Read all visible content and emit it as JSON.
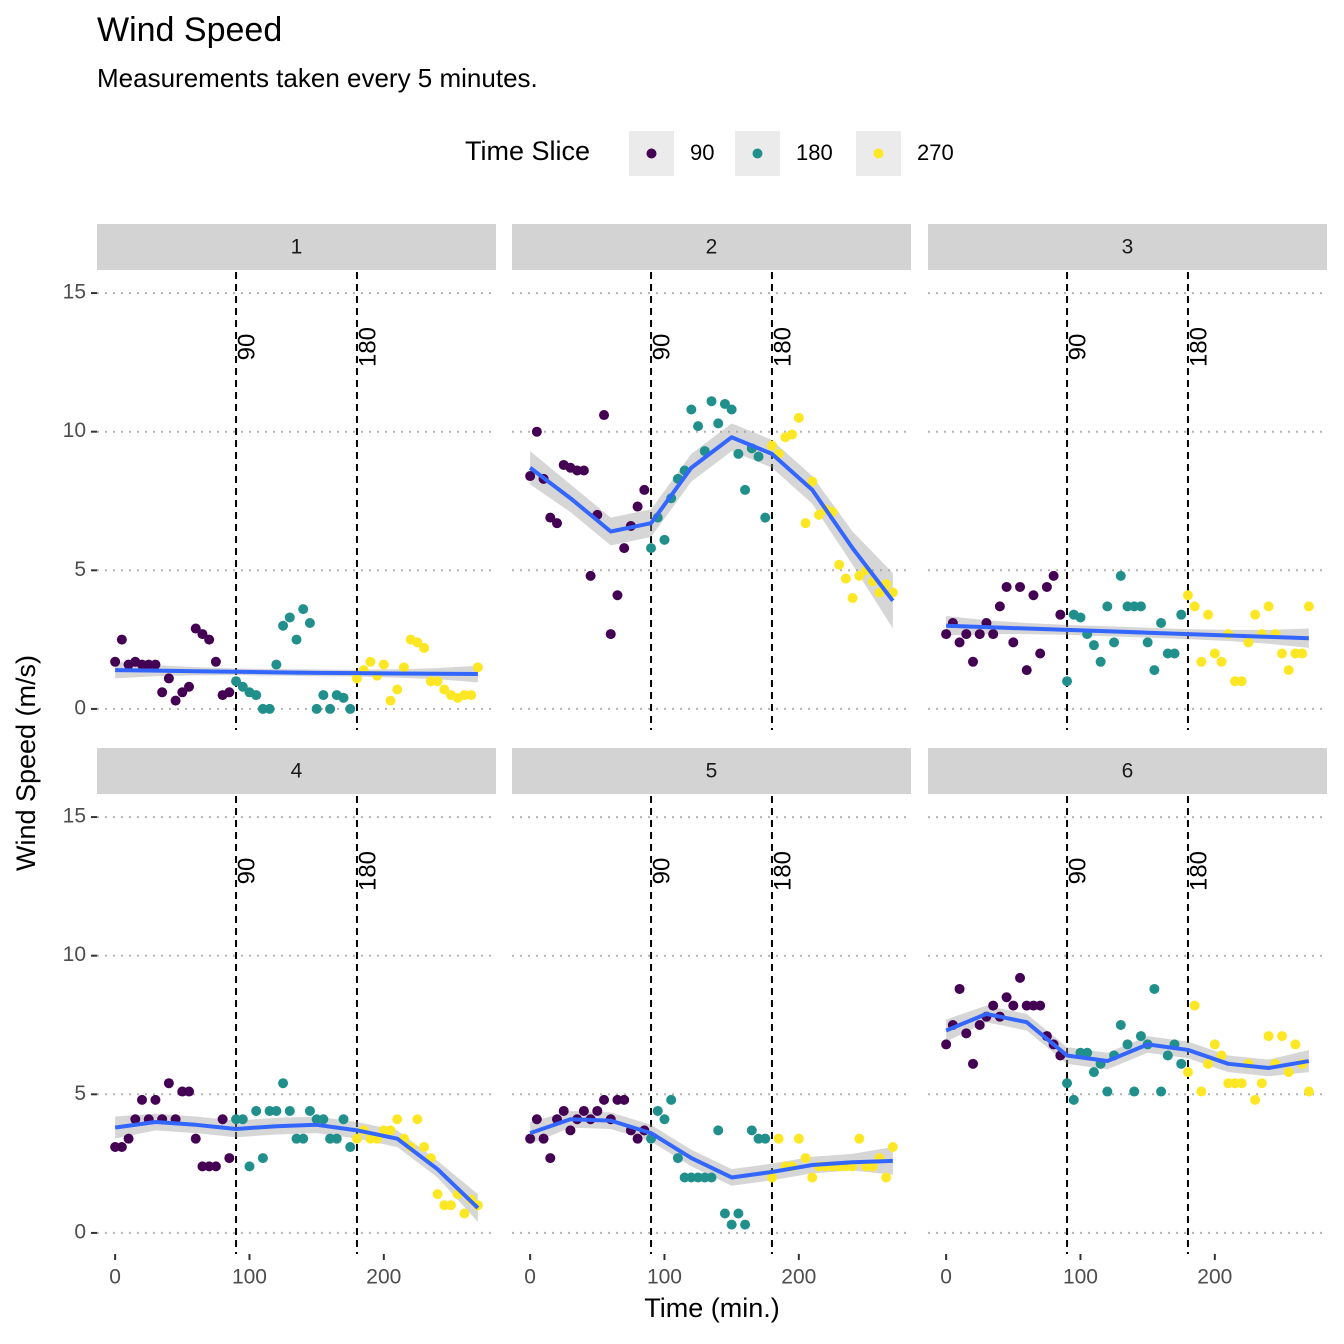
{
  "chart_data": {
    "type": "scatter",
    "title": "Wind Speed",
    "subtitle": "Measurements taken every 5 minutes.",
    "x_label": "Time (min.)",
    "y_label": "Wind Speed (m/s)",
    "legend_title": "Time Slice",
    "xlim": [
      -13.5,
      283.5
    ],
    "ylim": [
      -0.76,
      15.76
    ],
    "xticks": [
      0,
      100,
      200
    ],
    "yticks": [
      0,
      5,
      10,
      15
    ],
    "grid": true,
    "vlines": [
      90,
      180
    ],
    "smooth_color": "#3366FF",
    "groups": [
      {
        "name": "90",
        "color": "#440154",
        "x": [
          0,
          5,
          10,
          15,
          20,
          25,
          30,
          35,
          40,
          45,
          50,
          55,
          60,
          65,
          70,
          75,
          80,
          85
        ]
      },
      {
        "name": "180",
        "color": "#21908C",
        "x": [
          90,
          95,
          100,
          105,
          110,
          115,
          120,
          125,
          130,
          135,
          140,
          145,
          150,
          155,
          160,
          165,
          170,
          175
        ]
      },
      {
        "name": "270",
        "color": "#FDE725",
        "x": [
          180,
          185,
          190,
          195,
          200,
          205,
          210,
          215,
          220,
          225,
          230,
          235,
          240,
          245,
          250,
          255,
          260,
          265,
          270
        ]
      }
    ],
    "smooth_x": [
      0,
      30,
      60,
      90,
      120,
      150,
      180,
      210,
      240,
      270
    ],
    "facets": [
      {
        "label": "1",
        "values": [
          [
            1.7,
            2.5,
            1.6,
            1.7,
            1.6,
            1.6,
            1.6,
            0.6,
            1.1,
            0.3,
            0.6,
            0.8,
            2.9,
            2.7,
            2.5,
            1.7,
            0.5,
            0.6
          ],
          [
            1.0,
            0.8,
            0.6,
            0.5,
            0,
            0,
            1.6,
            3.0,
            3.3,
            2.5,
            3.6,
            3.1,
            0,
            0.5,
            0,
            0.5,
            0.4,
            0
          ],
          [
            1.1,
            1.4,
            1.7,
            1.2,
            1.6,
            0.3,
            0.7,
            1.5,
            2.5,
            2.4,
            2.2,
            1.0,
            1.0,
            0.7,
            0.5,
            0.4,
            0.5,
            0.5,
            1.5
          ]
        ],
        "smooth": {
          "values": [
            1.4,
            1.38,
            1.36,
            1.34,
            1.32,
            1.3,
            1.29,
            1.28,
            1.27,
            1.26
          ],
          "lower": [
            1.1,
            1.18,
            1.21,
            1.22,
            1.2,
            1.18,
            1.17,
            1.13,
            1.07,
            0.96
          ],
          "upper": [
            1.7,
            1.58,
            1.51,
            1.46,
            1.44,
            1.42,
            1.41,
            1.43,
            1.47,
            1.56
          ]
        }
      },
      {
        "label": "2",
        "values": [
          [
            8.4,
            10.0,
            8.3,
            6.9,
            6.7,
            8.8,
            8.7,
            8.6,
            8.6,
            4.8,
            7.0,
            10.6,
            2.7,
            4.1,
            5.8,
            6.6,
            7.3,
            7.9
          ],
          [
            5.8,
            6.9,
            6.1,
            7.6,
            8.3,
            8.6,
            10.8,
            10.2,
            9.3,
            11.1,
            10.3,
            11.0,
            10.8,
            9.2,
            7.9,
            9.4,
            9.1,
            6.9
          ],
          [
            9.5,
            9.2,
            9.8,
            9.9,
            10.5,
            6.7,
            8.2,
            7.0,
            7.2,
            7.1,
            5.2,
            4.7,
            4.0,
            4.8,
            5.0,
            4.6,
            4.2,
            4.5,
            4.2
          ]
        ],
        "smooth": {
          "values": [
            8.7,
            7.6,
            6.4,
            6.7,
            8.7,
            9.8,
            9.2,
            7.9,
            5.8,
            3.9
          ],
          "lower": [
            8.1,
            7.1,
            5.9,
            6.2,
            8.2,
            9.3,
            8.7,
            7.4,
            5.2,
            2.9
          ],
          "upper": [
            9.3,
            8.1,
            6.9,
            7.2,
            9.2,
            10.3,
            9.7,
            8.4,
            6.4,
            4.9
          ]
        }
      },
      {
        "label": "3",
        "values": [
          [
            2.7,
            3.1,
            2.4,
            2.7,
            1.7,
            2.7,
            3.1,
            2.7,
            3.7,
            4.4,
            2.4,
            4.4,
            1.4,
            4.1,
            2.0,
            4.4,
            4.8,
            3.4
          ],
          [
            1.0,
            3.4,
            3.3,
            2.7,
            2.3,
            1.7,
            3.7,
            2.4,
            4.8,
            3.7,
            3.7,
            3.7,
            2.4,
            1.4,
            3.1,
            2.0,
            2.0,
            3.4
          ],
          [
            4.1,
            3.7,
            1.7,
            3.4,
            2.0,
            1.7,
            2.7,
            1.0,
            1.0,
            2.4,
            3.4,
            2.7,
            3.7,
            2.7,
            2.0,
            1.4,
            2.0,
            2.0,
            3.7
          ]
        ],
        "smooth": {
          "values": [
            3.0,
            2.95,
            2.9,
            2.85,
            2.8,
            2.75,
            2.7,
            2.65,
            2.6,
            2.55
          ],
          "lower": [
            2.65,
            2.7,
            2.7,
            2.67,
            2.62,
            2.57,
            2.52,
            2.45,
            2.35,
            2.2
          ],
          "upper": [
            3.35,
            3.2,
            3.1,
            3.03,
            2.98,
            2.93,
            2.88,
            2.85,
            2.85,
            2.9
          ]
        }
      },
      {
        "label": "4",
        "values": [
          [
            3.1,
            3.1,
            3.4,
            4.1,
            4.8,
            4.1,
            4.8,
            4.1,
            5.4,
            4.1,
            5.1,
            5.1,
            3.4,
            2.4,
            2.4,
            2.4,
            4.1,
            2.7
          ],
          [
            4.1,
            4.1,
            2.4,
            4.4,
            2.7,
            4.4,
            4.4,
            5.4,
            4.4,
            3.4,
            3.4,
            4.4,
            4.1,
            4.1,
            3.4,
            3.4,
            4.1,
            3.1
          ],
          [
            3.4,
            3.7,
            3.4,
            3.4,
            3.7,
            3.7,
            4.1,
            3.4,
            3.1,
            4.1,
            3.1,
            2.7,
            1.4,
            1.0,
            1.0,
            1.4,
            0.7,
            1.2,
            1.0
          ]
        ],
        "smooth": {
          "values": [
            3.8,
            4.0,
            3.9,
            3.75,
            3.85,
            3.9,
            3.7,
            3.4,
            2.3,
            0.9
          ],
          "lower": [
            3.4,
            3.7,
            3.6,
            3.45,
            3.55,
            3.6,
            3.4,
            3.1,
            2.0,
            0.4
          ],
          "upper": [
            4.2,
            4.3,
            4.2,
            4.05,
            4.15,
            4.2,
            4.0,
            3.7,
            2.6,
            1.4
          ]
        }
      },
      {
        "label": "5",
        "values": [
          [
            3.4,
            4.1,
            3.4,
            2.7,
            4.1,
            4.4,
            3.7,
            4.1,
            4.4,
            4.1,
            4.4,
            4.8,
            4.1,
            4.8,
            4.8,
            3.7,
            3.4,
            3.7
          ],
          [
            3.4,
            4.4,
            4.1,
            4.8,
            2.7,
            2.0,
            2.0,
            2.0,
            2.0,
            2.0,
            3.7,
            0.7,
            0.3,
            0.7,
            0.3,
            3.7,
            3.4,
            3.4
          ],
          [
            2.0,
            3.4,
            2.4,
            2.4,
            3.4,
            2.7,
            2.0,
            2.4,
            2.4,
            2.4,
            2.4,
            2.4,
            2.4,
            3.4,
            2.4,
            2.4,
            2.7,
            2.0,
            3.1
          ]
        ],
        "smooth": {
          "values": [
            3.6,
            4.1,
            4.05,
            3.6,
            2.7,
            2.0,
            2.2,
            2.45,
            2.55,
            2.6
          ],
          "lower": [
            3.2,
            3.8,
            3.75,
            3.3,
            2.4,
            1.7,
            1.9,
            2.15,
            2.25,
            2.1
          ],
          "upper": [
            4.0,
            4.4,
            4.35,
            3.9,
            3.0,
            2.3,
            2.5,
            2.75,
            2.85,
            3.1
          ]
        }
      },
      {
        "label": "6",
        "values": [
          [
            6.8,
            7.5,
            8.8,
            7.2,
            6.1,
            7.5,
            7.8,
            8.2,
            7.8,
            8.5,
            8.2,
            9.2,
            8.2,
            8.2,
            8.2,
            7.1,
            6.8,
            6.4
          ],
          [
            5.4,
            4.8,
            6.5,
            6.5,
            5.8,
            6.1,
            5.1,
            6.4,
            7.5,
            6.8,
            5.1,
            7.1,
            6.8,
            8.8,
            5.1,
            6.4,
            6.8,
            6.1
          ],
          [
            5.8,
            8.2,
            5.1,
            6.1,
            6.8,
            6.4,
            5.4,
            5.4,
            5.4,
            6.1,
            4.8,
            5.4,
            7.1,
            6.1,
            7.1,
            5.8,
            6.8,
            6.1,
            5.1
          ]
        ],
        "smooth": {
          "values": [
            7.3,
            7.9,
            7.6,
            6.4,
            6.2,
            6.8,
            6.6,
            6.1,
            5.95,
            6.2
          ],
          "lower": [
            6.9,
            7.6,
            7.3,
            6.1,
            5.9,
            6.5,
            6.3,
            5.8,
            5.65,
            5.8
          ],
          "upper": [
            7.7,
            8.2,
            7.9,
            6.7,
            6.5,
            7.1,
            6.9,
            6.4,
            6.25,
            6.6
          ]
        }
      }
    ]
  }
}
